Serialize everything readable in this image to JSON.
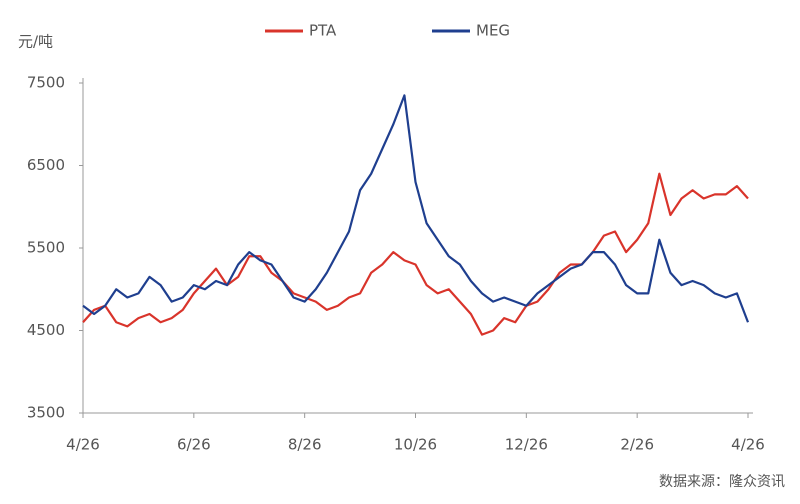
{
  "chart_data": {
    "type": "line",
    "y_label": "元/吨",
    "note": "数据来源：隆众资讯",
    "categories": [
      "4/26",
      null,
      null,
      null,
      null,
      null,
      null,
      null,
      null,
      null,
      "6/26",
      null,
      null,
      null,
      null,
      null,
      null,
      null,
      null,
      null,
      "8/26",
      null,
      null,
      null,
      null,
      null,
      null,
      null,
      null,
      null,
      "10/26",
      null,
      null,
      null,
      null,
      null,
      null,
      null,
      null,
      null,
      "12/26",
      null,
      null,
      null,
      null,
      null,
      null,
      null,
      null,
      null,
      "2/26",
      null,
      null,
      null,
      null,
      null,
      null,
      null,
      null,
      null,
      "4/26"
    ],
    "series": [
      {
        "name": "PTA",
        "color": "#d9342b",
        "values": [
          4600,
          4750,
          4800,
          4600,
          4550,
          4650,
          4700,
          4600,
          4650,
          4750,
          4950,
          5100,
          5250,
          5050,
          5150,
          5400,
          5400,
          5200,
          5100,
          4950,
          4900,
          4850,
          4750,
          4800,
          4900,
          4950,
          5200,
          5300,
          5450,
          5350,
          5300,
          5050,
          4950,
          5000,
          4850,
          4700,
          4450,
          4500,
          4650,
          4600,
          4800,
          4850,
          5000,
          5200,
          5300,
          5300,
          5450,
          5650,
          5700,
          5450,
          5600,
          5800,
          6400,
          5900,
          6100,
          6200,
          6100,
          6150,
          6150,
          6250,
          6100
        ]
      },
      {
        "name": "MEG",
        "color": "#1f3f8f",
        "values": [
          4800,
          4700,
          4800,
          5000,
          4900,
          4950,
          5150,
          5050,
          4850,
          4900,
          5050,
          5000,
          5100,
          5050,
          5300,
          5450,
          5350,
          5300,
          5100,
          4900,
          4850,
          5000,
          5200,
          5450,
          5700,
          6200,
          6400,
          6700,
          7000,
          7350,
          6300,
          5800,
          5600,
          5400,
          5300,
          5100,
          4950,
          4850,
          4900,
          4850,
          4800,
          4950,
          5050,
          5150,
          5250,
          5300,
          5450,
          5450,
          5300,
          5050,
          4950,
          4950,
          5600,
          5200,
          5050,
          5100,
          5050,
          4950,
          4900,
          4950,
          4600
        ]
      }
    ],
    "ylim": [
      3500,
      7500
    ],
    "yticks": [
      3500,
      4500,
      5500,
      6500,
      7500
    ],
    "grid": false,
    "legend": "top"
  }
}
